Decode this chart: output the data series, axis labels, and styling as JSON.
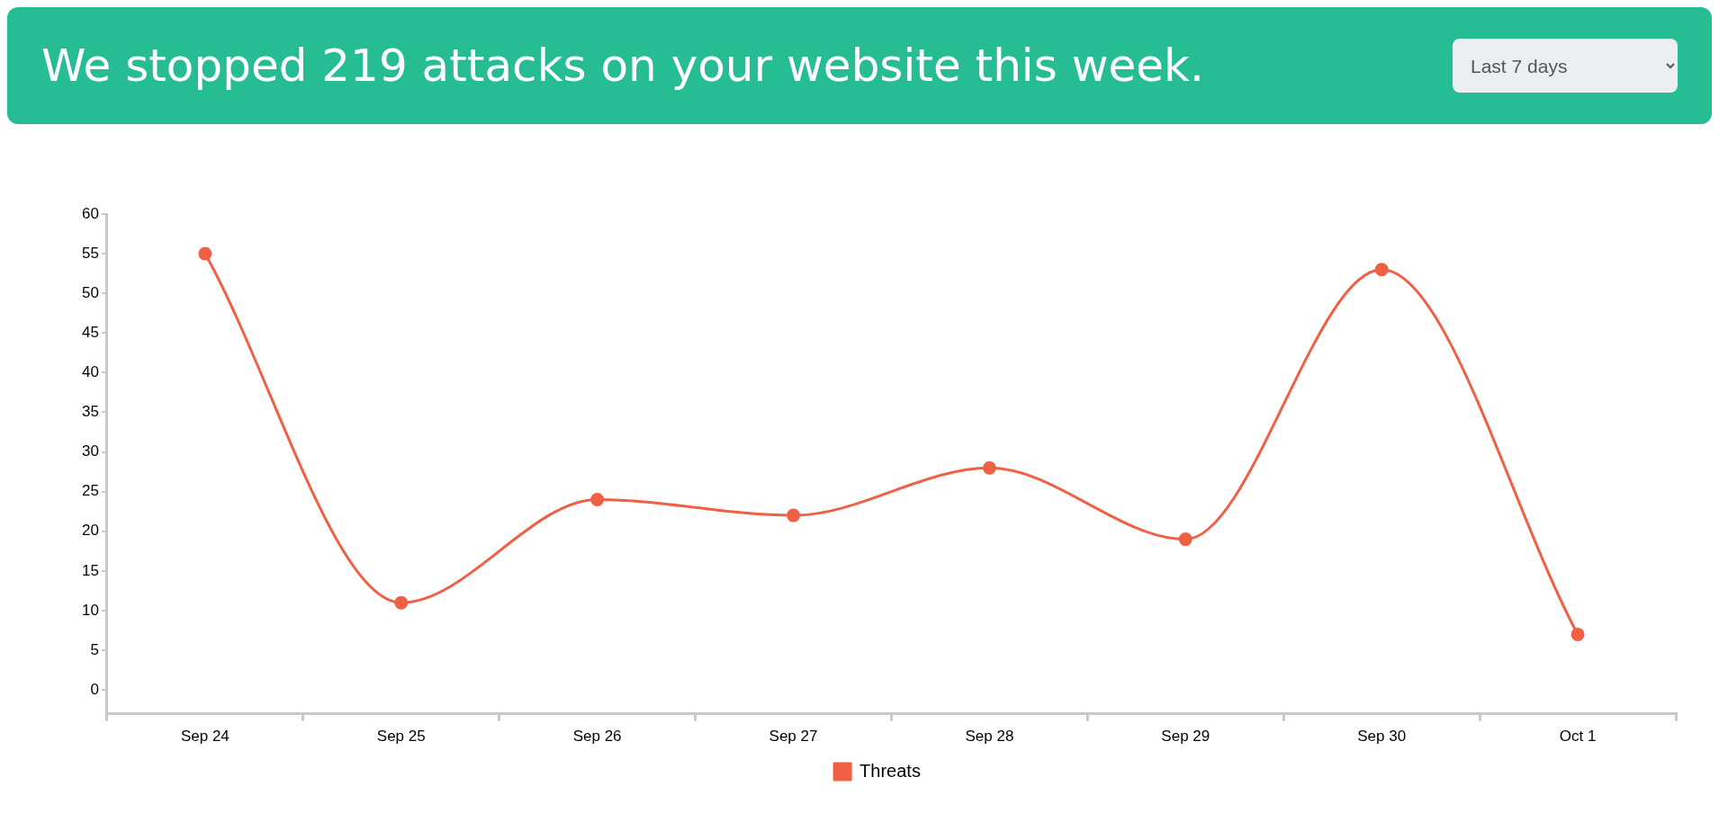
{
  "chart_data": {
    "type": "line",
    "title": "We stopped 219 attacks on your website this week.",
    "annotations": [
      "Last 7 days"
    ],
    "categories": [
      "Sep 24",
      "Sep 25",
      "Sep 26",
      "Sep 27",
      "Sep 28",
      "Sep 29",
      "Sep 30",
      "Oct 1"
    ],
    "series": [
      {
        "name": "Threats",
        "color": "#ef6044",
        "values": [
          55,
          11,
          24,
          22,
          28,
          19,
          53,
          7
        ]
      }
    ],
    "ylim": [
      -3,
      60
    ],
    "yticks": [
      0,
      5,
      10,
      15,
      20,
      25,
      30,
      35,
      40,
      45,
      50,
      55,
      60
    ],
    "grid": false,
    "legend": "bottom",
    "marker": "circle",
    "line_style": "solid"
  }
}
